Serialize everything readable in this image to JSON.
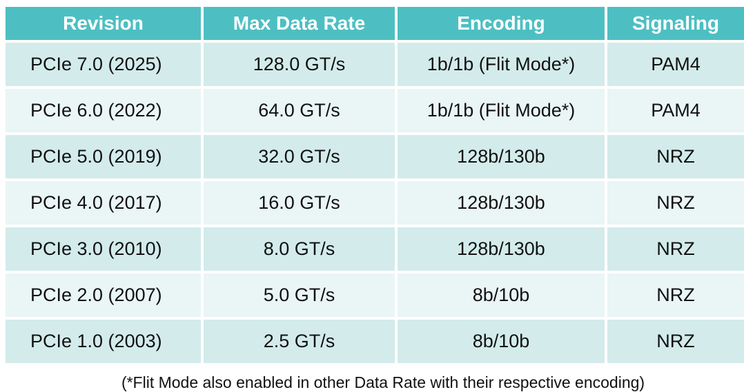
{
  "table": {
    "headers": [
      "Revision",
      "Max Data Rate",
      "Encoding",
      "Signaling"
    ],
    "rows": [
      [
        "PCIe 7.0 (2025)",
        "128.0 GT/s",
        "1b/1b (Flit Mode*)",
        "PAM4"
      ],
      [
        "PCIe 6.0 (2022)",
        "64.0 GT/s",
        "1b/1b (Flit Mode*)",
        "PAM4"
      ],
      [
        "PCIe 5.0 (2019)",
        "32.0 GT/s",
        "128b/130b",
        "NRZ"
      ],
      [
        "PCIe 4.0 (2017)",
        "16.0 GT/s",
        "128b/130b",
        "NRZ"
      ],
      [
        "PCIe 3.0 (2010)",
        "8.0 GT/s",
        "128b/130b",
        "NRZ"
      ],
      [
        "PCIe 2.0 (2007)",
        "5.0 GT/s",
        "8b/10b",
        "NRZ"
      ],
      [
        "PCIe 1.0 (2003)",
        "2.5 GT/s",
        "8b/10b",
        "NRZ"
      ]
    ]
  },
  "footnote": "(*Flit Mode also enabled in other Data Rate with their respective encoding)",
  "colors": {
    "header_bg": "#4dbfc2",
    "row_dark": "#d3ebeb",
    "row_light": "#eaf5f5"
  }
}
